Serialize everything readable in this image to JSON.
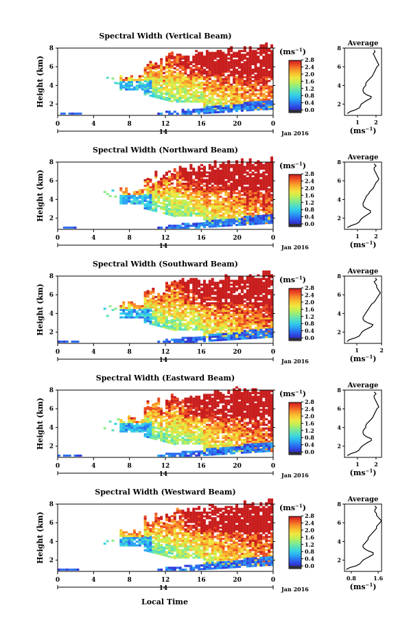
{
  "figure": {
    "colorbar_unit": "(ms",
    "colorbar_exp": "−1",
    "avg_title": "Average",
    "avg_xlabel_prefix": "(ms",
    "avg_xlabel_exp": "−1",
    "avg_xlabel_suffix": ")",
    "bottom_xlabel": "Local Time",
    "date_center": "14",
    "date_right": "Jan 2016",
    "ylabel": "Height (km)",
    "colors": {
      "colormap": [
        "#2d1e8c",
        "#2f3ad8",
        "#2a6cf0",
        "#2aa4f2",
        "#35d0e6",
        "#5ce0b8",
        "#8cec86",
        "#c4ee52",
        "#f0e640",
        "#f8c030",
        "#f88c28",
        "#ec4c24",
        "#c81e1e"
      ],
      "low_band": "#2d2d3a"
    }
  },
  "chart_data": [
    {
      "type": "heatmap",
      "title": "Spectral Width (Vertical Beam)",
      "xlabel": "",
      "ylabel": "Height (km)",
      "x_ticks": [
        "0",
        "4",
        "8",
        "12",
        "16",
        "20",
        "0"
      ],
      "xlim": [
        0,
        24
      ],
      "ylim": [
        0.8,
        8
      ],
      "y_ticks": [
        "2",
        "4",
        "6",
        "8"
      ],
      "colorbar_ticks": [
        "0.0",
        "0.4",
        "0.8",
        "1.2",
        "1.6",
        "2.0",
        "2.4",
        "2.8"
      ],
      "average": {
        "x_ticks": [
          "1",
          "2"
        ],
        "xlim": [
          0.3,
          2.3
        ],
        "height": [
          1.0,
          1.2,
          1.4,
          1.6,
          1.8,
          2.0,
          2.2,
          2.4,
          2.6,
          2.8,
          3.0,
          3.2,
          3.4,
          3.6,
          3.8,
          4.0,
          4.2,
          4.4,
          4.6,
          4.8,
          5.0,
          5.2,
          5.4,
          5.6,
          5.8,
          6.0,
          6.2,
          6.4,
          6.6,
          6.8,
          7.0,
          7.2,
          7.4,
          7.6,
          7.8
        ],
        "width": [
          0.45,
          0.6,
          0.9,
          1.1,
          1.15,
          1.2,
          1.35,
          1.5,
          1.7,
          1.75,
          1.5,
          1.35,
          1.3,
          1.3,
          1.35,
          1.45,
          1.45,
          1.5,
          1.6,
          1.7,
          1.8,
          1.85,
          1.9,
          1.95,
          2.0,
          2.05,
          2.15,
          2.1,
          2.05,
          2.0,
          1.95,
          1.9,
          1.85,
          1.95,
          1.9
        ]
      }
    },
    {
      "type": "heatmap",
      "title": "Spectral Width (Northward Beam)",
      "xlabel": "",
      "ylabel": "Height (km)",
      "x_ticks": [
        "0",
        "4",
        "8",
        "12",
        "16",
        "20",
        "0"
      ],
      "xlim": [
        0,
        24
      ],
      "ylim": [
        0.8,
        8
      ],
      "y_ticks": [
        "2",
        "4",
        "6",
        "8"
      ],
      "colorbar_ticks": [
        "0.0",
        "0.4",
        "0.8",
        "1.2",
        "1.6",
        "2.0",
        "2.4",
        "2.8"
      ],
      "average": {
        "x_ticks": [
          "1",
          "2"
        ],
        "xlim": [
          0.3,
          2.3
        ],
        "height": [
          1.0,
          1.2,
          1.4,
          1.6,
          1.8,
          2.0,
          2.2,
          2.4,
          2.6,
          2.8,
          3.0,
          3.2,
          3.4,
          3.6,
          3.8,
          4.0,
          4.2,
          4.4,
          4.6,
          4.8,
          5.0,
          5.2,
          5.4,
          5.6,
          5.8,
          6.0,
          6.2,
          6.4,
          6.6,
          6.8,
          7.0,
          7.2,
          7.4,
          7.6,
          7.8
        ],
        "width": [
          0.45,
          0.65,
          0.95,
          1.1,
          1.15,
          1.25,
          1.4,
          1.55,
          1.7,
          1.7,
          1.5,
          1.35,
          1.3,
          1.3,
          1.35,
          1.4,
          1.45,
          1.5,
          1.6,
          1.65,
          1.75,
          1.85,
          1.9,
          1.95,
          2.0,
          2.1,
          2.15,
          2.1,
          2.05,
          2.0,
          1.95,
          1.9,
          1.9,
          2.0,
          1.9
        ]
      }
    },
    {
      "type": "heatmap",
      "title": "Spectral Width (Southward Beam)",
      "xlabel": "",
      "ylabel": "Height (km)",
      "x_ticks": [
        "0",
        "4",
        "8",
        "12",
        "16",
        "20",
        "0"
      ],
      "xlim": [
        0,
        24
      ],
      "ylim": [
        0.8,
        8
      ],
      "y_ticks": [
        "2",
        "4",
        "6",
        "8"
      ],
      "colorbar_ticks": [
        "0.0",
        "0.4",
        "0.8",
        "1.2",
        "1.6",
        "2.0",
        "2.4",
        "2.8"
      ],
      "average": {
        "x_ticks": [
          "1",
          "2"
        ],
        "xlim": [
          0.5,
          2.0
        ],
        "height": [
          1.0,
          1.2,
          1.4,
          1.6,
          1.8,
          2.0,
          2.2,
          2.4,
          2.6,
          2.8,
          3.0,
          3.2,
          3.4,
          3.6,
          3.8,
          4.0,
          4.2,
          4.4,
          4.6,
          4.8,
          5.0,
          5.2,
          5.4,
          5.6,
          5.8,
          6.0,
          6.2,
          6.4,
          6.6,
          6.8,
          7.0,
          7.2,
          7.4,
          7.6,
          7.8
        ],
        "width": [
          0.6,
          0.7,
          0.95,
          1.1,
          1.15,
          1.2,
          1.3,
          1.45,
          1.6,
          1.65,
          1.45,
          1.3,
          1.25,
          1.25,
          1.3,
          1.35,
          1.4,
          1.45,
          1.5,
          1.55,
          1.6,
          1.7,
          1.75,
          1.8,
          1.85,
          1.9,
          1.95,
          1.9,
          1.85,
          1.8,
          1.8,
          1.75,
          1.7,
          1.8,
          1.75
        ]
      }
    },
    {
      "type": "heatmap",
      "title": "Spectral Width (Eastward Beam)",
      "xlabel": "",
      "ylabel": "Height (km)",
      "x_ticks": [
        "0",
        "4",
        "8",
        "12",
        "16",
        "20",
        "0"
      ],
      "xlim": [
        0,
        24
      ],
      "ylim": [
        0.8,
        8
      ],
      "y_ticks": [
        "2",
        "4",
        "6",
        "8"
      ],
      "colorbar_ticks": [
        "0.0",
        "0.4",
        "0.8",
        "1.2",
        "1.6",
        "2.0",
        "2.4",
        "2.8"
      ],
      "average": {
        "x_ticks": [
          "1",
          "2"
        ],
        "xlim": [
          0.3,
          2.3
        ],
        "height": [
          1.0,
          1.2,
          1.4,
          1.6,
          1.8,
          2.0,
          2.2,
          2.4,
          2.6,
          2.8,
          3.0,
          3.2,
          3.4,
          3.6,
          3.8,
          4.0,
          4.2,
          4.4,
          4.6,
          4.8,
          5.0,
          5.2,
          5.4,
          5.6,
          5.8,
          6.0,
          6.2,
          6.4,
          6.6,
          6.8,
          7.0,
          7.2,
          7.4,
          7.6,
          7.8
        ],
        "width": [
          0.45,
          0.65,
          0.95,
          1.1,
          1.15,
          1.25,
          1.4,
          1.55,
          1.75,
          1.75,
          1.5,
          1.35,
          1.3,
          1.3,
          1.35,
          1.45,
          1.45,
          1.5,
          1.6,
          1.7,
          1.8,
          1.85,
          1.9,
          1.95,
          2.0,
          2.05,
          2.15,
          2.1,
          2.05,
          2.0,
          1.95,
          1.9,
          1.9,
          2.0,
          1.9
        ]
      }
    },
    {
      "type": "heatmap",
      "title": "Spectral Width (Westward Beam)",
      "xlabel": "Local Time",
      "ylabel": "Height (km)",
      "x_ticks": [
        "0",
        "4",
        "8",
        "12",
        "16",
        "20",
        "0"
      ],
      "xlim": [
        0,
        24
      ],
      "ylim": [
        0.8,
        8
      ],
      "y_ticks": [
        "2",
        "4",
        "6",
        "8"
      ],
      "colorbar_ticks": [
        "0.0",
        "0.4",
        "0.8",
        "1.2",
        "1.6",
        "2.0",
        "2.4",
        "2.8"
      ],
      "average": {
        "x_ticks": [
          "0.8",
          "1.6"
        ],
        "xlim": [
          0.6,
          1.7
        ],
        "height": [
          1.0,
          1.2,
          1.4,
          1.6,
          1.8,
          2.0,
          2.2,
          2.4,
          2.6,
          2.8,
          3.0,
          3.2,
          3.4,
          3.6,
          3.8,
          4.0,
          4.2,
          4.4,
          4.6,
          4.8,
          5.0,
          5.2,
          5.4,
          5.6,
          5.8,
          6.0,
          6.2,
          6.4,
          6.6,
          6.8,
          7.0,
          7.2,
          7.4,
          7.6,
          7.8
        ],
        "width": [
          0.65,
          0.75,
          0.95,
          1.05,
          1.1,
          1.15,
          1.25,
          1.35,
          1.45,
          1.45,
          1.3,
          1.2,
          1.15,
          1.15,
          1.2,
          1.25,
          1.3,
          1.3,
          1.35,
          1.4,
          1.45,
          1.5,
          1.55,
          1.55,
          1.6,
          1.65,
          1.7,
          1.65,
          1.6,
          1.55,
          1.55,
          1.5,
          1.5,
          1.55,
          1.5
        ]
      }
    }
  ]
}
